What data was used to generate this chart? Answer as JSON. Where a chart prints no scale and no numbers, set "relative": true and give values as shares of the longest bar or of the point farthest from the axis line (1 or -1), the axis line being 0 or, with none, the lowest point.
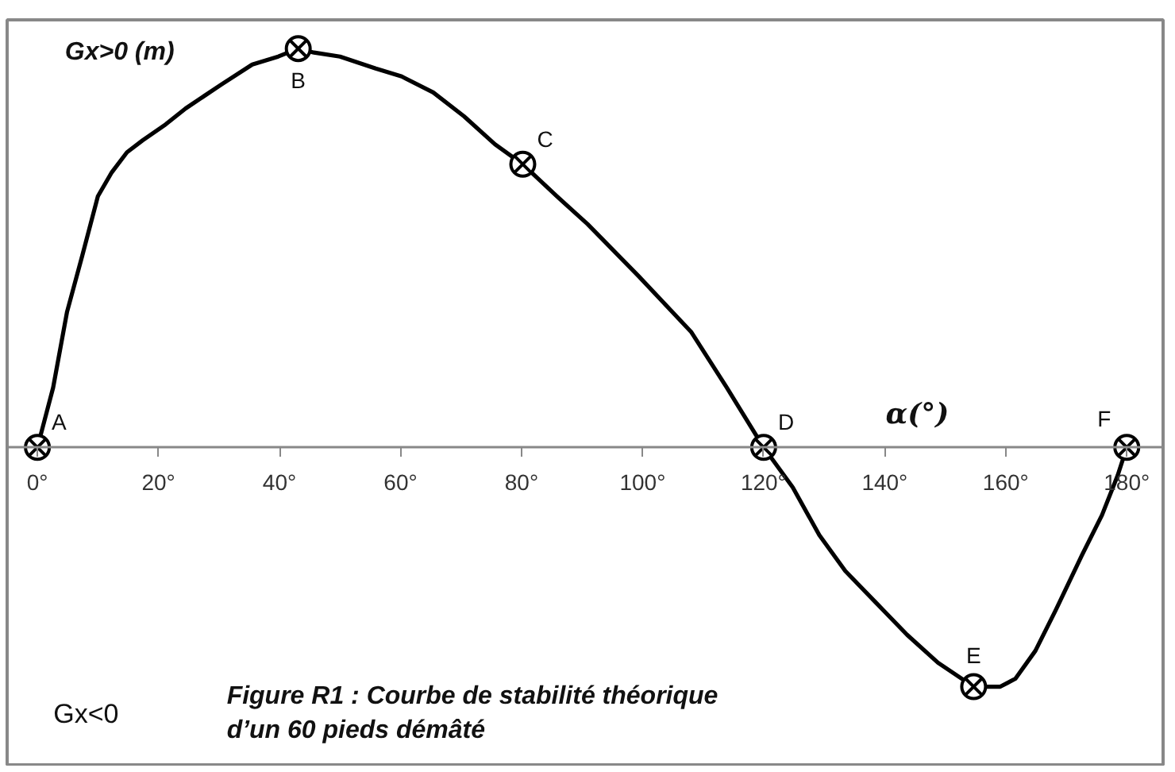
{
  "chart_data": {
    "type": "line",
    "ylabel": "Gx>0 (m)",
    "xlabel": "α(°)",
    "relative": true,
    "xlim": [
      -5,
      186
    ],
    "xticks": [
      {
        "value": 0,
        "label": "0°"
      },
      {
        "value": 20,
        "label": "20°"
      },
      {
        "value": 40,
        "label": "40°"
      },
      {
        "value": 60,
        "label": "60°"
      },
      {
        "value": 80,
        "label": "80°"
      },
      {
        "value": 100,
        "label": "100°"
      },
      {
        "value": 120,
        "label": "120°"
      },
      {
        "value": 140,
        "label": "140°"
      },
      {
        "value": 160,
        "label": "160°"
      },
      {
        "value": 180,
        "label": "180°"
      }
    ],
    "series": [
      {
        "color": "#000000",
        "x": [
          0,
          2.6,
          4.9,
          7.4,
          10,
          12.3,
          14.8,
          17.4,
          21.2,
          24.5,
          30.4,
          35.5,
          39.8,
          43.1,
          45.7,
          50,
          55.9,
          60.2,
          65.4,
          70.5,
          75.6,
          80.2,
          85.8,
          90.9,
          99.3,
          108,
          113.9,
          120,
          124.8,
          129.2,
          133.5,
          138.6,
          143.7,
          148.8,
          154.7,
          159.1,
          161.6,
          164.9,
          168.2,
          172.6,
          175.9,
          178.5,
          180
        ],
        "values": [
          0,
          0.15,
          0.34,
          0.48,
          0.63,
          0.69,
          0.74,
          0.77,
          0.81,
          0.85,
          0.91,
          0.96,
          0.98,
          1,
          0.99,
          0.98,
          0.95,
          0.93,
          0.89,
          0.83,
          0.76,
          0.71,
          0.63,
          0.56,
          0.43,
          0.29,
          0.15,
          0,
          -0.1,
          -0.22,
          -0.31,
          -0.39,
          -0.47,
          -0.54,
          -0.6,
          -0.6,
          -0.58,
          -0.51,
          -0.41,
          -0.27,
          -0.17,
          -0.07,
          0
        ]
      },
      {
        "type": "scatter",
        "color": "#000000",
        "marker": "cross",
        "x": [
          0,
          43.1,
          80.2,
          120,
          154.7,
          180
        ],
        "values": [
          0,
          1,
          0.71,
          0,
          -0.6,
          0
        ]
      }
    ],
    "annotations": [
      {
        "text": "A",
        "x": 0,
        "y": 0
      },
      {
        "text": "B",
        "x": 43.1,
        "y": 1
      },
      {
        "text": "C",
        "x": 80.2,
        "y": 0.71
      },
      {
        "text": "D",
        "x": 120,
        "y": 0
      },
      {
        "text": "E",
        "x": 154.7,
        "y": -0.6
      },
      {
        "text": "F",
        "x": 180,
        "y": 0
      },
      "Gx<0",
      "Figure R1 : Courbe de stabilité théorique\nd’un 60 pieds démâté"
    ]
  }
}
